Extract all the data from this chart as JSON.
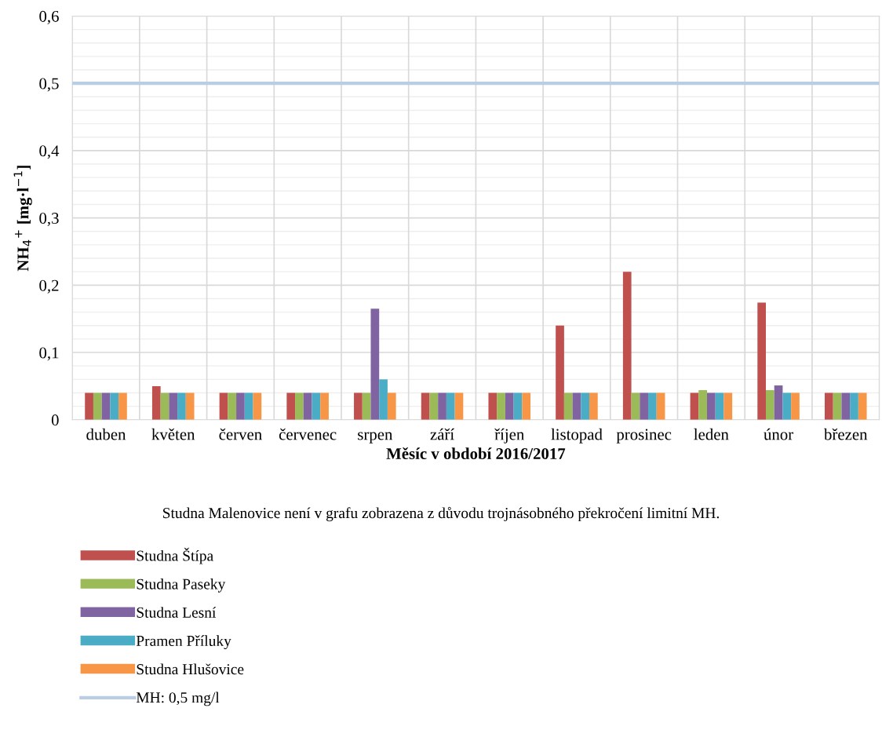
{
  "chart_data": {
    "type": "bar",
    "xlabel": "Měsíc v období 2016/2017",
    "ylabel": "NH$_{4}$$^{+}$ [mg·l$^{−1}$]",
    "categories": [
      "duben",
      "květen",
      "červen",
      "červenec",
      "srpen",
      "září",
      "říjen",
      "listopad",
      "prosinec",
      "leden",
      "únor",
      "březen"
    ],
    "series": [
      {
        "name": "Studna Štípa",
        "color": "#c0504d",
        "values": [
          0.04,
          0.05,
          0.04,
          0.04,
          0.04,
          0.04,
          0.04,
          0.14,
          0.22,
          0.04,
          0.174,
          0.04
        ]
      },
      {
        "name": "Studna Paseky",
        "color": "#9bbb59",
        "values": [
          0.04,
          0.04,
          0.04,
          0.04,
          0.04,
          0.04,
          0.04,
          0.04,
          0.04,
          0.044,
          0.044,
          0.04
        ]
      },
      {
        "name": "Studna Lesní",
        "color": "#8064a2",
        "values": [
          0.04,
          0.04,
          0.04,
          0.04,
          0.165,
          0.04,
          0.04,
          0.04,
          0.04,
          0.04,
          0.051,
          0.04
        ]
      },
      {
        "name": "Pramen Příluky",
        "color": "#4bacc6",
        "values": [
          0.04,
          0.04,
          0.04,
          0.04,
          0.06,
          0.04,
          0.04,
          0.04,
          0.04,
          0.04,
          0.04,
          0.04
        ]
      },
      {
        "name": "Studna Hlušovice",
        "color": "#f79646",
        "values": [
          0.04,
          0.04,
          0.04,
          0.04,
          0.04,
          0.04,
          0.04,
          0.04,
          0.04,
          0.04,
          0.04,
          0.04
        ]
      }
    ],
    "ylim": [
      0,
      0.6
    ],
    "yticks": [
      {
        "value": 0,
        "label": "0"
      },
      {
        "value": 0.02,
        "label": null
      },
      {
        "value": 0.04,
        "label": null
      },
      {
        "value": 0.06,
        "label": null
      },
      {
        "value": 0.08,
        "label": null
      },
      {
        "value": 0.1,
        "label": "0,1"
      },
      {
        "value": 0.12,
        "label": null
      },
      {
        "value": 0.14,
        "label": null
      },
      {
        "value": 0.16,
        "label": null
      },
      {
        "value": 0.18,
        "label": null
      },
      {
        "value": 0.2,
        "label": "0,2"
      },
      {
        "value": 0.22,
        "label": null
      },
      {
        "value": 0.24,
        "label": null
      },
      {
        "value": 0.26,
        "label": null
      },
      {
        "value": 0.28,
        "label": null
      },
      {
        "value": 0.3,
        "label": "0,3"
      },
      {
        "value": 0.32,
        "label": null
      },
      {
        "value": 0.34,
        "label": null
      },
      {
        "value": 0.36,
        "label": null
      },
      {
        "value": 0.38,
        "label": null
      },
      {
        "value": 0.4,
        "label": "0,4"
      },
      {
        "value": 0.42,
        "label": null
      },
      {
        "value": 0.44,
        "label": null
      },
      {
        "value": 0.46,
        "label": null
      },
      {
        "value": 0.48,
        "label": null
      },
      {
        "value": 0.5,
        "label": "0,5"
      },
      {
        "value": 0.52,
        "label": null
      },
      {
        "value": 0.54,
        "label": null
      },
      {
        "value": 0.56,
        "label": null
      },
      {
        "value": 0.58,
        "label": null
      },
      {
        "value": 0.6,
        "label": "0,6"
      }
    ],
    "ref_lines": [
      {
        "axis": "y",
        "value": 0.5,
        "label": "MH: 0,5 mg/l",
        "color": "#b9cde5"
      }
    ],
    "annotations": [
      "Studna Malenovice není v grafu zobrazena z důvodu trojnásobného překročení limitní MH."
    ],
    "grid": true,
    "legend": "bottom"
  }
}
